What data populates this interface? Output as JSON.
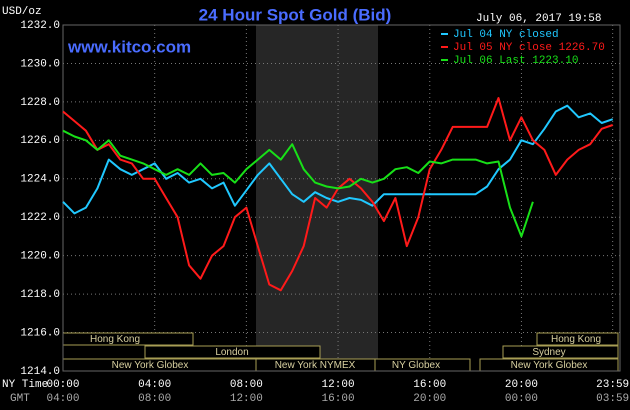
{
  "chart_data": {
    "type": "line",
    "title": "24 Hour Spot Gold (Bid)",
    "subtitle": "July 06, 2017 19:58",
    "watermark": "www.kitco.com",
    "y_label": "USD/oz",
    "x_row_labels": [
      "NY Time",
      "GMT"
    ],
    "x": [
      0,
      0.5,
      1,
      1.5,
      2,
      2.5,
      3,
      3.5,
      4,
      4.5,
      5,
      5.5,
      6,
      6.5,
      7,
      7.5,
      8,
      8.5,
      9,
      9.5,
      10,
      10.5,
      11,
      11.5,
      12,
      12.5,
      13,
      13.5,
      14,
      14.5,
      15,
      15.5,
      16,
      16.5,
      17,
      17.5,
      18,
      18.5,
      19,
      19.5,
      20,
      20.5,
      21,
      21.5,
      22,
      22.5,
      23,
      23.5,
      23.98
    ],
    "xlim": [
      0,
      24.3
    ],
    "xticks": [
      {
        "value": 0,
        "label": "00:00"
      },
      {
        "value": 4,
        "label": "04:00"
      },
      {
        "value": 8,
        "label": "08:00"
      },
      {
        "value": 12,
        "label": "12:00"
      },
      {
        "value": 16,
        "label": "16:00"
      },
      {
        "value": 20,
        "label": "20:00"
      },
      {
        "value": 23.98,
        "label": "23:59"
      }
    ],
    "gmt_tick_labels": [
      "04:00",
      "08:00",
      "12:00",
      "16:00",
      "20:00",
      "00:00",
      "03:59"
    ],
    "ylim": [
      1214,
      1232
    ],
    "yticks": [
      {
        "value": 1214,
        "label": "1214.0"
      },
      {
        "value": 1216,
        "label": "1216.0"
      },
      {
        "value": 1218,
        "label": "1218.0"
      },
      {
        "value": 1220,
        "label": "1220.0"
      },
      {
        "value": 1222,
        "label": "1222.0"
      },
      {
        "value": 1224,
        "label": "1224.0"
      },
      {
        "value": 1226,
        "label": "1226.0"
      },
      {
        "value": 1228,
        "label": "1228.0"
      },
      {
        "value": 1230,
        "label": "1230.0"
      },
      {
        "value": 1232,
        "label": "1232.0"
      }
    ],
    "grid": true,
    "sessions": [
      "Hong Kong",
      "London",
      "New York Globex",
      "New York NYMEX",
      "NY Globex",
      "Hong Kong",
      "Sydney",
      "New York Globex"
    ],
    "series": [
      {
        "name": "Jul 04 NY closed",
        "color": "#20c8ff",
        "values": [
          1222.8,
          1222.2,
          1222.5,
          1223.5,
          1225.0,
          1224.5,
          1224.2,
          1224.5,
          1224.8,
          1224.0,
          1224.3,
          1223.8,
          1224.0,
          1223.5,
          1223.8,
          1222.6,
          1223.4,
          1224.2,
          1224.8,
          1224.0,
          1223.2,
          1222.8,
          1223.3,
          1223.0,
          1222.8,
          1223.0,
          1222.9,
          1222.6,
          1223.2,
          1223.2,
          1223.2,
          1223.2,
          1223.2,
          1223.2,
          1223.2,
          1223.2,
          1223.2,
          1223.6,
          1224.5,
          1225.0,
          1226.0,
          1225.8,
          1226.6,
          1227.5,
          1227.8,
          1227.2,
          1227.4,
          1226.9,
          1227.1
        ]
      },
      {
        "name": "Jul 05 NY close 1226.70",
        "color": "#ff1a1a",
        "values": [
          1227.5,
          1227.0,
          1226.5,
          1225.5,
          1225.8,
          1225.0,
          1224.8,
          1224.0,
          1224.0,
          1223.0,
          1222.0,
          1219.5,
          1218.8,
          1220.0,
          1220.5,
          1222.0,
          1222.5,
          1220.5,
          1218.5,
          1218.2,
          1219.2,
          1220.5,
          1223.0,
          1222.5,
          1223.5,
          1224.0,
          1223.5,
          1222.8,
          1221.8,
          1223.0,
          1220.5,
          1222.0,
          1224.5,
          1225.5,
          1226.7,
          1226.7,
          1226.7,
          1226.7,
          1228.2,
          1226.0,
          1227.2,
          1226.0,
          1225.5,
          1224.2,
          1225.0,
          1225.5,
          1225.8,
          1226.6,
          1226.8
        ]
      },
      {
        "name": "Jul 06 Last 1223.10",
        "color": "#18e018",
        "values": [
          1226.5,
          1226.2,
          1226.0,
          1225.5,
          1226.0,
          1225.2,
          1225.0,
          1224.8,
          1224.5,
          1224.2,
          1224.5,
          1224.2,
          1224.8,
          1224.2,
          1224.3,
          1223.8,
          1224.5,
          1225.0,
          1225.5,
          1225.0,
          1225.8,
          1224.5,
          1223.8,
          1223.6,
          1223.5,
          1223.6,
          1224.0,
          1223.8,
          1224.0,
          1224.5,
          1224.6,
          1224.3,
          1224.9,
          1224.8,
          1225.0,
          1225.0,
          1225.0,
          1224.8,
          1224.9,
          1222.5,
          1221.0,
          1222.8,
          null,
          null,
          null,
          null,
          null,
          null,
          null
        ]
      }
    ]
  }
}
